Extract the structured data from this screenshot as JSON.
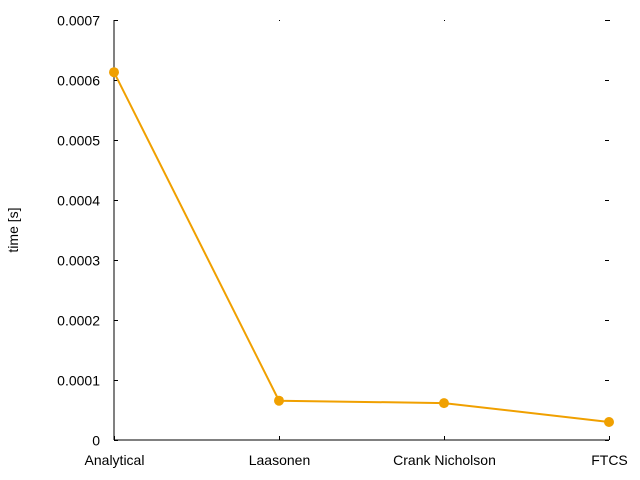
{
  "chart_data": {
    "type": "line",
    "categories": [
      "Analytical",
      "Laasonen",
      "Crank Nicholson",
      "FTCS"
    ],
    "series": [
      {
        "values": [
          0.000613,
          6.55e-05,
          6.15e-05,
          3e-05
        ],
        "color": "#f0a000"
      }
    ],
    "title": "",
    "xlabel": "",
    "ylabel": "time [s]",
    "ylim": [
      0,
      0.0007
    ],
    "yticks": [
      0,
      0.0001,
      0.0002,
      0.0003,
      0.0004,
      0.0005,
      0.0006,
      0.0007
    ],
    "ytick_labels": [
      "0",
      "0.0001",
      "0.0002",
      "0.0003",
      "0.0004",
      "0.0005",
      "0.0006",
      "0.0007"
    ],
    "grid": false,
    "legend": "none"
  }
}
